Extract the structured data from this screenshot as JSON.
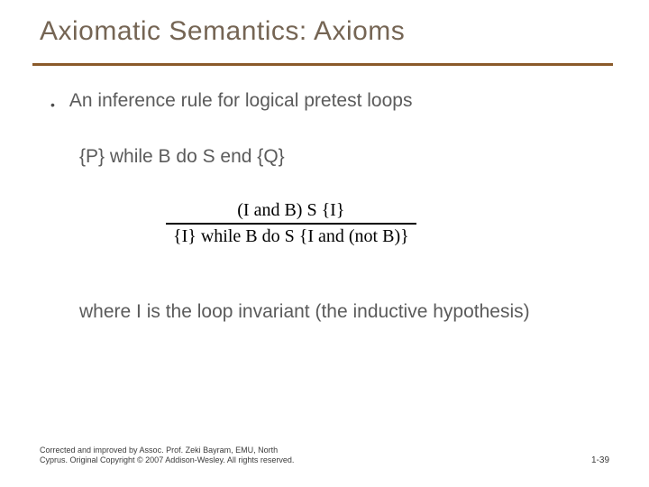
{
  "title": "Axiomatic Semantics: Axioms",
  "bullet": {
    "marker": "•",
    "text": "An inference rule for logical pretest loops"
  },
  "formula": "{P} while B do S end {Q}",
  "inference": {
    "top": "(I and B) S {I}",
    "bottom": "{I} while B do S {I and (not B)}"
  },
  "explanation": "where I is the loop invariant (the inductive hypothesis)",
  "footer": {
    "left_line1": "Corrected and improved by Assoc. Prof. Zeki Bayram, EMU, North",
    "left_line2": "Cyprus. Original Copyright © 2007 Addison-Wesley. All rights reserved.",
    "page": "1-39"
  },
  "colors": {
    "title": "#756554",
    "rule": "#8a5a2a",
    "body_text": "#5b5b5b",
    "inference_text": "#000000",
    "background": "#ffffff"
  },
  "typography": {
    "title_fontsize": 30,
    "body_fontsize": 21,
    "inference_fontsize": 20,
    "footer_fontsize": 9
  }
}
